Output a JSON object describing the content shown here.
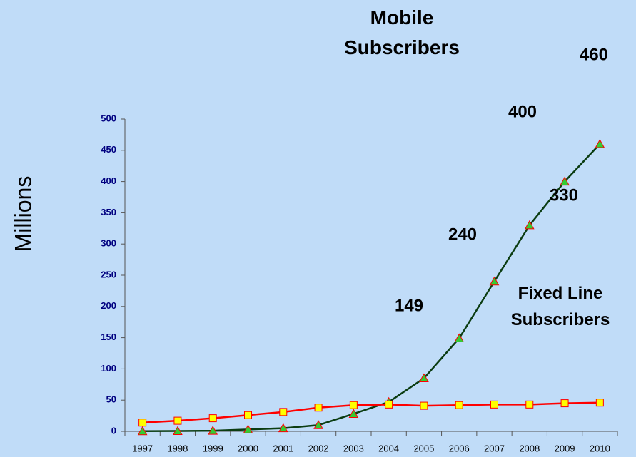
{
  "chart_data": {
    "type": "line",
    "y_label": "Millions",
    "categories": [
      "1997",
      "1998",
      "1999",
      "2000",
      "2001",
      "2002",
      "2003",
      "2004",
      "2005",
      "2006",
      "2007",
      "2008",
      "2009",
      "2010"
    ],
    "series": [
      {
        "name": "Mobile Subscribers",
        "color": "#0b3d12",
        "marker": "triangle",
        "marker_color": "#33cc33",
        "values": [
          0.3,
          0.5,
          1,
          3,
          5,
          10,
          28,
          47,
          85,
          149,
          240,
          330,
          400,
          460
        ]
      },
      {
        "name": "Fixed Line Subscribers",
        "color": "#ff0000",
        "marker": "square",
        "marker_color": "#ffff00",
        "values": [
          14,
          17,
          21,
          26,
          31,
          38,
          42,
          43,
          41,
          42,
          43,
          43,
          45,
          46
        ]
      }
    ],
    "ylim": [
      0,
      500
    ],
    "yticks": [
      0,
      50,
      100,
      150,
      200,
      250,
      300,
      350,
      400,
      450,
      500
    ],
    "grid": false
  }
}
